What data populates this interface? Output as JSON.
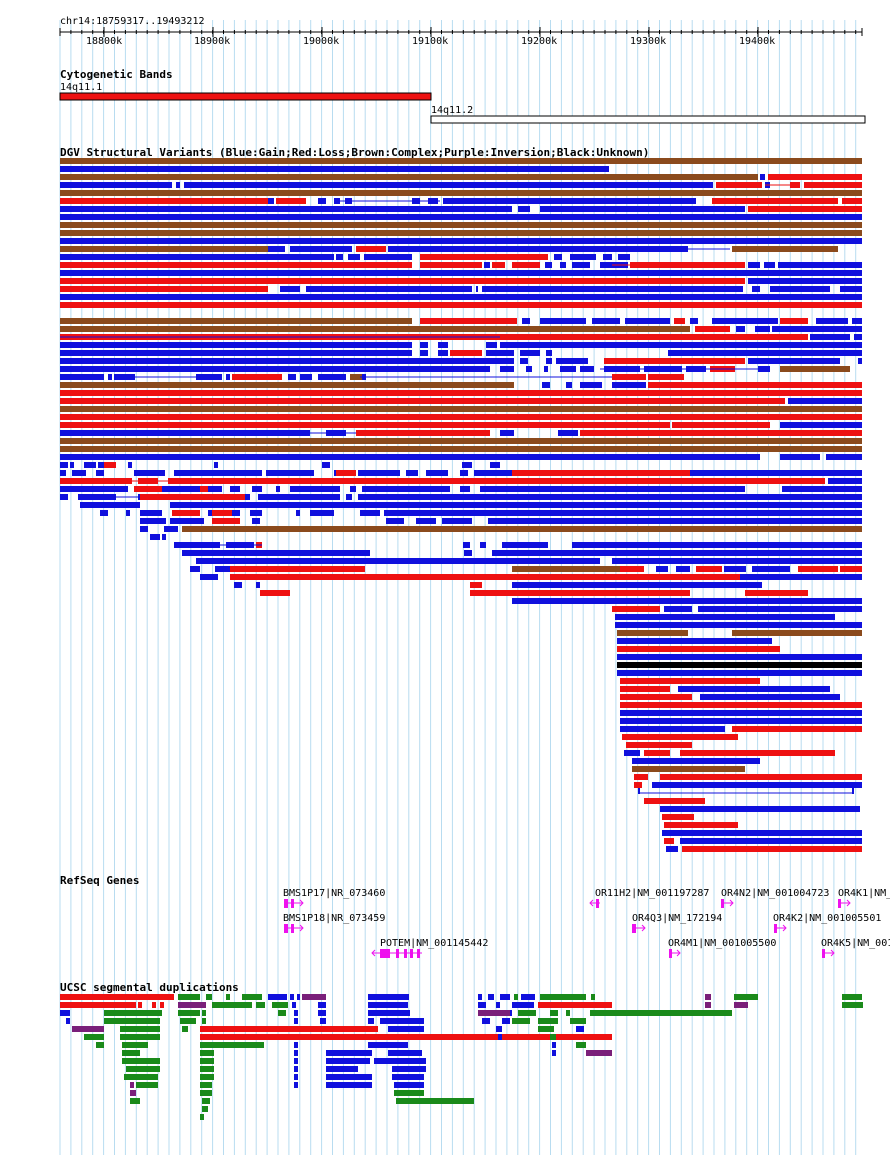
{
  "region": "chr14:18759317..19493212",
  "ruler": {
    "ticks": [
      "18800k",
      "18900k",
      "19000k",
      "19100k",
      "19200k",
      "19300k",
      "19400k"
    ]
  },
  "tracks": {
    "cytoband": {
      "title": "Cytogenetic Bands",
      "bands": [
        {
          "name": "14q11.1",
          "color": "#ee1111"
        },
        {
          "name": "14q11.2",
          "color": "#ffffff"
        }
      ]
    },
    "dgv": {
      "title": "DGV Structural Variants (Blue:Gain;Red:Loss;Brown:Complex;Purple:Inversion;Black:Unknown)",
      "legend_colors": {
        "gain": "#1010dd",
        "loss": "#ee1111",
        "complex": "#8b4a1c",
        "inversion": "#7a1f7a",
        "unknown": "#000000"
      }
    },
    "refseq": {
      "title": "RefSeq Genes",
      "color": "#ee11ee",
      "genes": [
        {
          "label": "BMS1P17|NR_073460",
          "strand": "+"
        },
        {
          "label": "BMS1P18|NR_073459",
          "strand": "+"
        },
        {
          "label": "POTEM|NM_001145442",
          "strand": "-"
        },
        {
          "label": "OR11H2|NM_001197287",
          "strand": "-"
        },
        {
          "label": "OR4Q3|NM_172194",
          "strand": "+"
        },
        {
          "label": "OR4N2|NM_001004723",
          "strand": "+"
        },
        {
          "label": "OR4M1|NM_001005500",
          "strand": "+"
        },
        {
          "label": "OR4K2|NM_001005501",
          "strand": "+"
        },
        {
          "label": "OR4K1|NM_",
          "strand": "+"
        },
        {
          "label": "OR4K5|NM_001",
          "strand": "+"
        }
      ]
    },
    "segdup": {
      "title": "UCSC segmental duplications",
      "colors": {
        "high": "#ee1111",
        "mid": "#1a8a1a",
        "blue": "#1010dd",
        "purple": "#7a1f7a"
      }
    }
  }
}
